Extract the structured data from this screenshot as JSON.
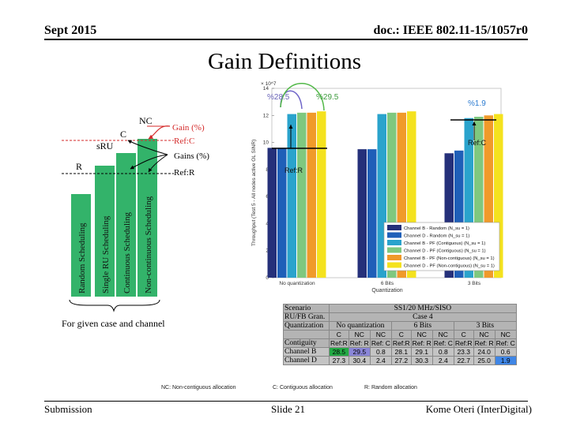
{
  "header": {
    "date": "Sept 2015",
    "doc": "doc.: IEEE 802.11-15/1057r0"
  },
  "title": "Gain Definitions",
  "footer": {
    "left": "Submission",
    "center": "Slide 21",
    "right": "Kome Oteri (InterDigital)"
  },
  "notes": {
    "nc": "NC: Non-contiguous allocation",
    "c": "C: Contiguous allocation",
    "r": "R: Random allocation"
  },
  "diagram": {
    "labels": {
      "nc": "NC",
      "c": "C",
      "sru": "sRU",
      "r": "R",
      "gain": "Gain (%)",
      "refc": "Ref:C",
      "gains": "Gains (%)",
      "refr": "Ref:R"
    },
    "bar_labels": [
      "Random Scheduling",
      "Single RU Scheduling",
      "Continuous Scheduling",
      "Non-continuous Scheduling"
    ],
    "bar_heights": [
      0.65,
      0.83,
      0.91,
      1.0
    ],
    "caption": "For given case and channel",
    "colors": {
      "bar": "#33b36a",
      "arrow_red": "#d42a2a",
      "arrow_black": "#000000"
    }
  },
  "chart_data": {
    "type": "bar",
    "title": "",
    "ylabel": "Throughput (Test 5 - All nodes active OL SINR)",
    "xlabel": "Quantization",
    "y_exponent": "× 10^7",
    "ylim": [
      0,
      14
    ],
    "yticks": [
      "0",
      "2",
      "4",
      "6",
      "8",
      "10",
      "12",
      "14"
    ],
    "categories": [
      "No quantization",
      "6 Bits",
      "3 Bits"
    ],
    "series": [
      {
        "name": "Channel B - Random (N_su = 1)",
        "color": "#25307a",
        "values": [
          9.6,
          9.5,
          9.2
        ]
      },
      {
        "name": "Channel D - Random (N_su = 1)",
        "color": "#1f5fb8",
        "values": [
          9.6,
          9.5,
          9.4
        ]
      },
      {
        "name": "Channel B - PF (Contiguous) (N_su = 1)",
        "color": "#2aa3cc",
        "values": [
          12.1,
          12.1,
          11.8
        ]
      },
      {
        "name": "Channel D - PF (Contiguous) (N_su = 1)",
        "color": "#7fc87f",
        "values": [
          12.2,
          12.2,
          11.9
        ]
      },
      {
        "name": "Channel B - PF (Non-contiguous) (N_su = 1)",
        "color": "#f09a2a",
        "values": [
          12.2,
          12.2,
          12.0
        ]
      },
      {
        "name": "Channel D - PF (Non-contiguous) (N_su = 1)",
        "color": "#f4e21e",
        "values": [
          12.3,
          12.3,
          12.1
        ]
      }
    ],
    "annotations": [
      "%28.5",
      "%29.5",
      "%1.9",
      "Ref:C",
      "Ref:R"
    ]
  },
  "table": {
    "r0": [
      "Scenario",
      "SS1/20 MHz/SISO"
    ],
    "r1": [
      "RU/FB Gran.",
      "Case 4"
    ],
    "r2": [
      "Quantization",
      "No quantization",
      "6 Bits",
      "3 Bits"
    ],
    "r3": [
      "",
      "C",
      "NC",
      "NC",
      "C",
      "NC",
      "NC",
      "C",
      "NC",
      "NC"
    ],
    "r4": [
      "Contiguity",
      "Ref:R",
      "Ref: R",
      "Ref: C",
      "Ref:R",
      "Ref: R",
      "Ref: C",
      "Ref:R",
      "Ref: R",
      "Ref: C"
    ],
    "r5": [
      "Channel B",
      "28.5",
      "29.5",
      "0.8",
      "28.1",
      "29.1",
      "0.8",
      "23.3",
      "24.0",
      "0.6"
    ],
    "r6": [
      "Channel D",
      "27.3",
      "30.4",
      "2.4",
      "27.2",
      "30.3",
      "2.4",
      "22.7",
      "25.0",
      "1.9"
    ]
  }
}
